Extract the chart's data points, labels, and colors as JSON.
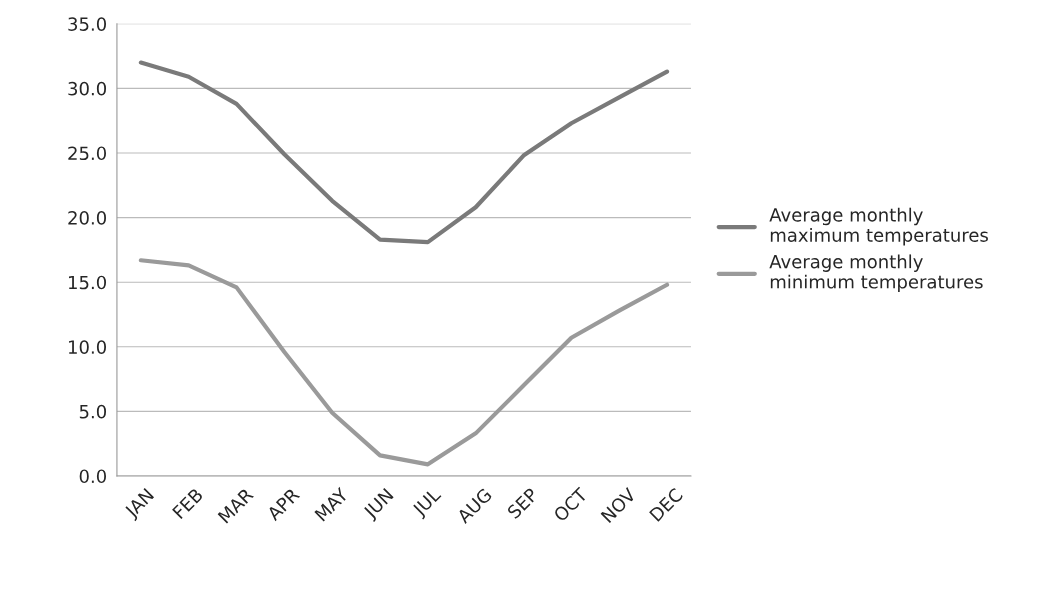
{
  "chart_data": {
    "type": "line",
    "categories": [
      "JAN",
      "FEB",
      "MAR",
      "APR",
      "MAY",
      "JUN",
      "JUL",
      "AUG",
      "SEP",
      "OCT",
      "NOV",
      "DEC"
    ],
    "series": [
      {
        "name": "Average monthly maximum temperatures",
        "color": "#7a7a7a",
        "values": [
          32.0,
          30.9,
          28.8,
          24.9,
          21.3,
          18.3,
          18.1,
          20.8,
          24.8,
          27.3,
          29.3,
          31.3
        ]
      },
      {
        "name": "Average monthly minimum temperatures",
        "color": "#9a9a9a",
        "values": [
          16.7,
          16.3,
          14.6,
          9.6,
          4.9,
          1.6,
          0.9,
          3.3,
          7.0,
          10.7,
          12.8,
          14.8
        ]
      }
    ],
    "ylim": [
      0,
      35
    ],
    "yticks": [
      {
        "value": 0,
        "label": "0.0"
      },
      {
        "value": 5,
        "label": "5.0"
      },
      {
        "value": 10,
        "label": "10.0"
      },
      {
        "value": 15,
        "label": "15.0"
      },
      {
        "value": 20,
        "label": "20.0"
      },
      {
        "value": 25,
        "label": "25.0"
      },
      {
        "value": 30,
        "label": "30.0"
      },
      {
        "value": 35,
        "label": "35.0"
      }
    ],
    "grid": "y",
    "legend": "right",
    "marker": "none",
    "line_style": "solid"
  }
}
